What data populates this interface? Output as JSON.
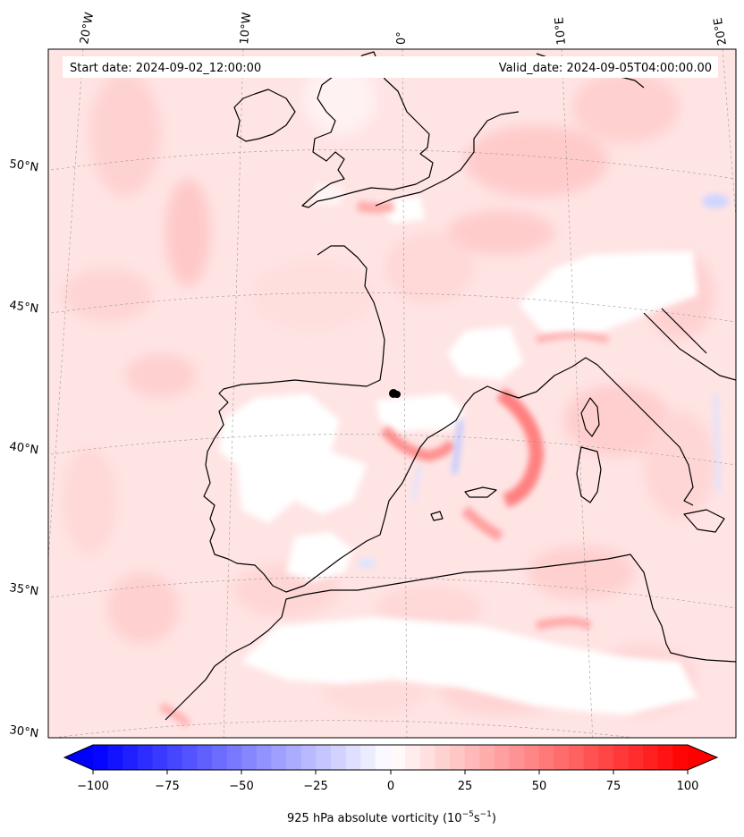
{
  "header": {
    "start_date": "Start date: 2024-09-02_12:00:00",
    "valid_date": "Valid_date: 2024-09-05T04:00:00.00"
  },
  "graticule": {
    "lon_labels": [
      "20°W",
      "10°W",
      "0°",
      "10°E",
      "20°E"
    ],
    "lat_labels": [
      "50°N",
      "45°N",
      "40°N",
      "35°N",
      "30°N"
    ]
  },
  "colorbar": {
    "ticks": [
      "−100",
      "−75",
      "−50",
      "−25",
      "0",
      "25",
      "50",
      "75",
      "100"
    ],
    "label_main": "925 hPa absolute vorticity (10",
    "label_exp1": "−5",
    "label_mid": "s",
    "label_exp2": "−1",
    "label_end": ")",
    "min": -100,
    "max": 100,
    "color_neg": "#0000ff",
    "color_pos": "#ff0000"
  },
  "map": {
    "projection": "conic",
    "extent_lat": [
      30,
      53
    ],
    "extent_lon": [
      -20,
      20
    ],
    "marker_color": "#000000"
  }
}
